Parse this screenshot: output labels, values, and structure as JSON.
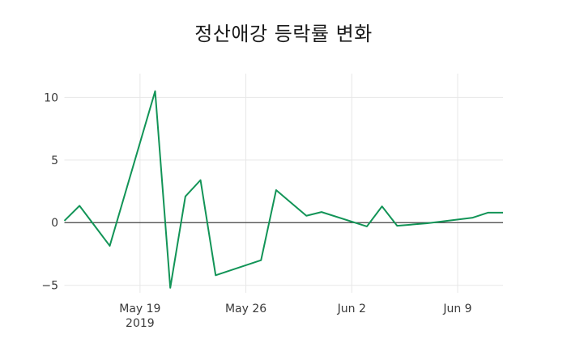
{
  "chart_data": {
    "type": "line",
    "title": "정산애강 등락률 변화",
    "xlabel": "",
    "ylabel": "",
    "legend": false,
    "grid": true,
    "xlim_days": [
      0,
      29
    ],
    "ylim": [
      -5.6,
      11.9
    ],
    "x_ticks": [
      {
        "day_offset": 5,
        "label": "May 19",
        "sublabel": "2019"
      },
      {
        "day_offset": 12,
        "label": "May 26",
        "sublabel": ""
      },
      {
        "day_offset": 19,
        "label": "Jun 2",
        "sublabel": ""
      },
      {
        "day_offset": 26,
        "label": "Jun 9",
        "sublabel": ""
      }
    ],
    "y_ticks": [
      {
        "value": -5,
        "label": "−5"
      },
      {
        "value": 0,
        "label": "0"
      },
      {
        "value": 5,
        "label": "5"
      },
      {
        "value": 10,
        "label": "10"
      }
    ],
    "series": [
      {
        "name": "등락률",
        "points": [
          {
            "date": "2019-05-14",
            "day_offset": 0,
            "value": 0.15
          },
          {
            "date": "2019-05-15",
            "day_offset": 1,
            "value": 1.35
          },
          {
            "date": "2019-05-17",
            "day_offset": 3,
            "value": -1.85
          },
          {
            "date": "2019-05-20",
            "day_offset": 6,
            "value": 10.5
          },
          {
            "date": "2019-05-21",
            "day_offset": 7,
            "value": -5.2
          },
          {
            "date": "2019-05-22",
            "day_offset": 8,
            "value": 2.1
          },
          {
            "date": "2019-05-23",
            "day_offset": 9,
            "value": 3.4
          },
          {
            "date": "2019-05-24",
            "day_offset": 10,
            "value": -4.2
          },
          {
            "date": "2019-05-27",
            "day_offset": 13,
            "value": -3.0
          },
          {
            "date": "2019-05-28",
            "day_offset": 14,
            "value": 2.6
          },
          {
            "date": "2019-05-30",
            "day_offset": 16,
            "value": 0.55
          },
          {
            "date": "2019-05-31",
            "day_offset": 17,
            "value": 0.85
          },
          {
            "date": "2019-06-03",
            "day_offset": 20,
            "value": -0.3
          },
          {
            "date": "2019-06-04",
            "day_offset": 21,
            "value": 1.3
          },
          {
            "date": "2019-06-05",
            "day_offset": 22,
            "value": -0.25
          },
          {
            "date": "2019-06-07",
            "day_offset": 24,
            "value": -0.05
          },
          {
            "date": "2019-06-10",
            "day_offset": 27,
            "value": 0.4
          },
          {
            "date": "2019-06-11",
            "day_offset": 28,
            "value": 0.8
          },
          {
            "date": "2019-06-12",
            "day_offset": 29,
            "value": 0.8
          }
        ]
      }
    ],
    "colors": {
      "line": "#129457",
      "grid": "#e7e7e7",
      "zero_line": "#3f3f3f",
      "tick_text": "#3a3a3a",
      "title_text": "#1a1a1a",
      "background": "#ffffff"
    }
  }
}
